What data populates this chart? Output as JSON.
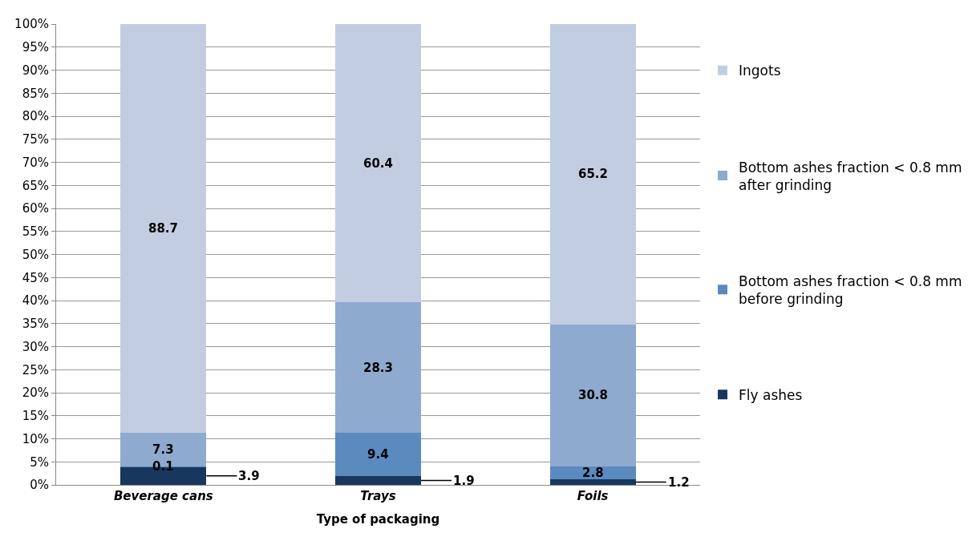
{
  "chart_data": {
    "type": "bar",
    "stacked": true,
    "xlabel": "Type of packaging",
    "categories": [
      "Beverage cans",
      "Trays",
      "Foils"
    ],
    "series": [
      {
        "name": "Fly ashes",
        "color": "#17375e",
        "values": [
          3.9,
          1.9,
          1.2
        ]
      },
      {
        "name": "Bottom ashes fraction < 0.8 mm before grinding",
        "color": "#5b8abf",
        "values": [
          0.1,
          9.4,
          2.8
        ]
      },
      {
        "name": "Bottom ashes fraction < 0.8 mm after grinding",
        "color": "#8eaacf",
        "values": [
          7.3,
          28.3,
          30.8
        ]
      },
      {
        "name": "Ingots",
        "color": "#c3cde2",
        "values": [
          88.7,
          60.4,
          65.2
        ]
      }
    ],
    "ylim": [
      0,
      100
    ],
    "yticks": [
      {
        "value": 0,
        "label": "0%"
      },
      {
        "value": 5,
        "label": "5%"
      },
      {
        "value": 10,
        "label": "10%"
      },
      {
        "value": 15,
        "label": "15%"
      },
      {
        "value": 20,
        "label": "20%"
      },
      {
        "value": 25,
        "label": "25%"
      },
      {
        "value": 30,
        "label": "30%"
      },
      {
        "value": 35,
        "label": "35%"
      },
      {
        "value": 40,
        "label": "40%"
      },
      {
        "value": 45,
        "label": "45%"
      },
      {
        "value": 50,
        "label": "50%"
      },
      {
        "value": 55,
        "label": "55%"
      },
      {
        "value": 60,
        "label": "60%"
      },
      {
        "value": 65,
        "label": "65%"
      },
      {
        "value": 70,
        "label": "70%"
      },
      {
        "value": 75,
        "label": "75%"
      },
      {
        "value": 80,
        "label": "80%"
      },
      {
        "value": 85,
        "label": "85%"
      },
      {
        "value": 90,
        "label": "90%"
      },
      {
        "value": 95,
        "label": "95%"
      },
      {
        "value": 100,
        "label": "100%"
      }
    ],
    "grid": "y",
    "legend": "right",
    "data_labels": true
  }
}
